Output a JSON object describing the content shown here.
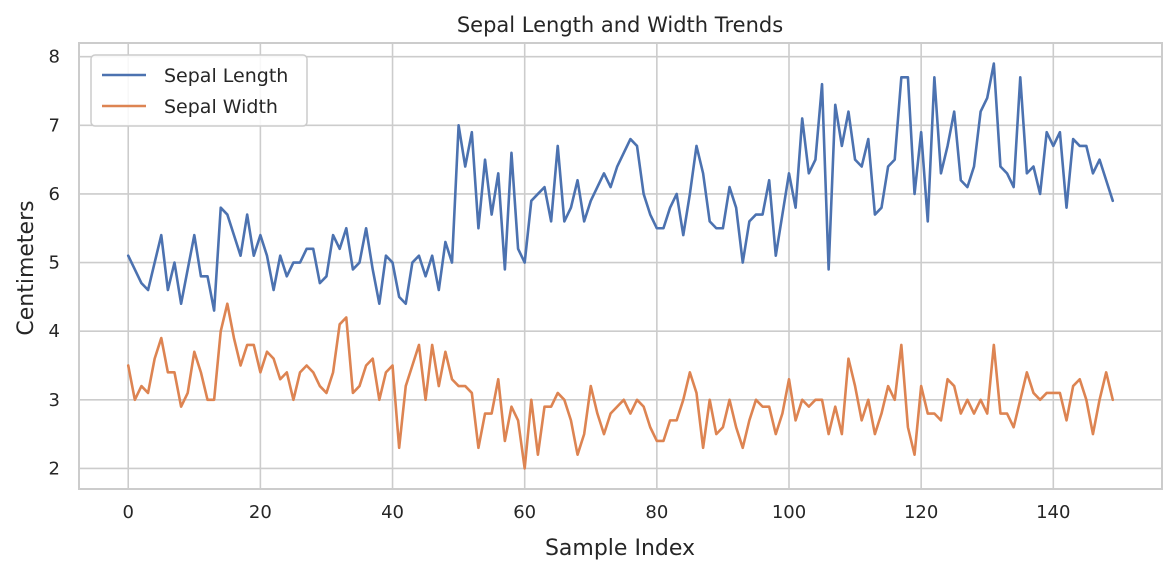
{
  "chart_data": {
    "type": "line",
    "title": "Sepal Length and Width Trends",
    "xlabel": "Sample Index",
    "ylabel": "Centimeters",
    "xlim": [
      -7.45,
      156.45
    ],
    "ylim": [
      1.7,
      8.2
    ],
    "xticks": [
      0,
      20,
      40,
      60,
      80,
      100,
      120,
      140
    ],
    "yticks": [
      2,
      3,
      4,
      5,
      6,
      7,
      8
    ],
    "grid": true,
    "legend": "top-left",
    "x_start": 0,
    "series": [
      {
        "name": "Sepal Length",
        "color": "#4c72b0",
        "values": [
          5.1,
          4.9,
          4.7,
          4.6,
          5.0,
          5.4,
          4.6,
          5.0,
          4.4,
          4.9,
          5.4,
          4.8,
          4.8,
          4.3,
          5.8,
          5.7,
          5.4,
          5.1,
          5.7,
          5.1,
          5.4,
          5.1,
          4.6,
          5.1,
          4.8,
          5.0,
          5.0,
          5.2,
          5.2,
          4.7,
          4.8,
          5.4,
          5.2,
          5.5,
          4.9,
          5.0,
          5.5,
          4.9,
          4.4,
          5.1,
          5.0,
          4.5,
          4.4,
          5.0,
          5.1,
          4.8,
          5.1,
          4.6,
          5.3,
          5.0,
          7.0,
          6.4,
          6.9,
          5.5,
          6.5,
          5.7,
          6.3,
          4.9,
          6.6,
          5.2,
          5.0,
          5.9,
          6.0,
          6.1,
          5.6,
          6.7,
          5.6,
          5.8,
          6.2,
          5.6,
          5.9,
          6.1,
          6.3,
          6.1,
          6.4,
          6.6,
          6.8,
          6.7,
          6.0,
          5.7,
          5.5,
          5.5,
          5.8,
          6.0,
          5.4,
          6.0,
          6.7,
          6.3,
          5.6,
          5.5,
          5.5,
          6.1,
          5.8,
          5.0,
          5.6,
          5.7,
          5.7,
          6.2,
          5.1,
          5.7,
          6.3,
          5.8,
          7.1,
          6.3,
          6.5,
          7.6,
          4.9,
          7.3,
          6.7,
          7.2,
          6.5,
          6.4,
          6.8,
          5.7,
          5.8,
          6.4,
          6.5,
          7.7,
          7.7,
          6.0,
          6.9,
          5.6,
          7.7,
          6.3,
          6.7,
          7.2,
          6.2,
          6.1,
          6.4,
          7.2,
          7.4,
          7.9,
          6.4,
          6.3,
          6.1,
          7.7,
          6.3,
          6.4,
          6.0,
          6.9,
          6.7,
          6.9,
          5.8,
          6.8,
          6.7,
          6.7,
          6.3,
          6.5,
          6.2,
          5.9
        ]
      },
      {
        "name": "Sepal Width",
        "color": "#dd8452",
        "values": [
          3.5,
          3.0,
          3.2,
          3.1,
          3.6,
          3.9,
          3.4,
          3.4,
          2.9,
          3.1,
          3.7,
          3.4,
          3.0,
          3.0,
          4.0,
          4.4,
          3.9,
          3.5,
          3.8,
          3.8,
          3.4,
          3.7,
          3.6,
          3.3,
          3.4,
          3.0,
          3.4,
          3.5,
          3.4,
          3.2,
          3.1,
          3.4,
          4.1,
          4.2,
          3.1,
          3.2,
          3.5,
          3.6,
          3.0,
          3.4,
          3.5,
          2.3,
          3.2,
          3.5,
          3.8,
          3.0,
          3.8,
          3.2,
          3.7,
          3.3,
          3.2,
          3.2,
          3.1,
          2.3,
          2.8,
          2.8,
          3.3,
          2.4,
          2.9,
          2.7,
          2.0,
          3.0,
          2.2,
          2.9,
          2.9,
          3.1,
          3.0,
          2.7,
          2.2,
          2.5,
          3.2,
          2.8,
          2.5,
          2.8,
          2.9,
          3.0,
          2.8,
          3.0,
          2.9,
          2.6,
          2.4,
          2.4,
          2.7,
          2.7,
          3.0,
          3.4,
          3.1,
          2.3,
          3.0,
          2.5,
          2.6,
          3.0,
          2.6,
          2.3,
          2.7,
          3.0,
          2.9,
          2.9,
          2.5,
          2.8,
          3.3,
          2.7,
          3.0,
          2.9,
          3.0,
          3.0,
          2.5,
          2.9,
          2.5,
          3.6,
          3.2,
          2.7,
          3.0,
          2.5,
          2.8,
          3.2,
          3.0,
          3.8,
          2.6,
          2.2,
          3.2,
          2.8,
          2.8,
          2.7,
          3.3,
          3.2,
          2.8,
          3.0,
          2.8,
          3.0,
          2.8,
          3.8,
          2.8,
          2.8,
          2.6,
          3.0,
          3.4,
          3.1,
          3.0,
          3.1,
          3.1,
          3.1,
          2.7,
          3.2,
          3.3,
          3.0,
          2.5,
          3.0,
          3.4,
          3.0
        ]
      }
    ]
  }
}
